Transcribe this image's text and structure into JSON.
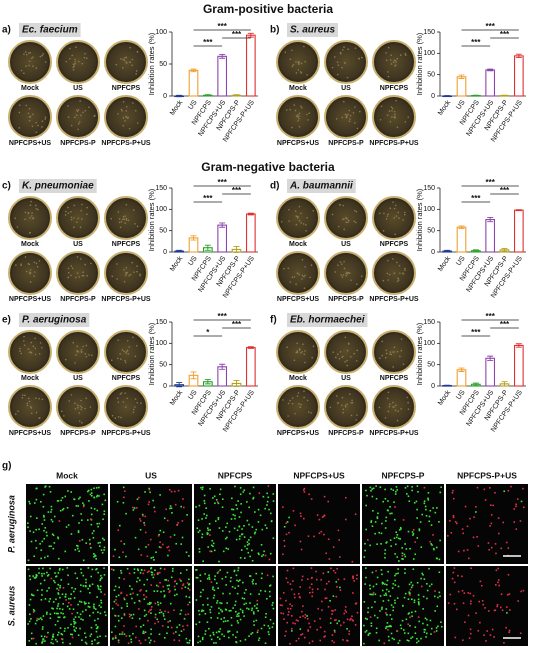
{
  "figure": {
    "sections": [
      "Gram-positive bacteria",
      "Gram-negative bacteria"
    ],
    "panel_g": {
      "label": "g)",
      "columns": [
        "Mock",
        "US",
        "NPFCPS",
        "NPFCPS+US",
        "NPFCPS-P",
        "NPFCPS-P+US"
      ],
      "rows": [
        "P. aeruginosa",
        "S. aureus"
      ]
    }
  },
  "chart_data": [
    {
      "type": "bar",
      "panel_label": "a)",
      "title": "Ec. faecium",
      "ylabel": "Inhibition rates (%)",
      "categories": [
        "Mock",
        "US",
        "NPFCPS",
        "NPFCPS+US",
        "NPFCPS-P",
        "NPFCPS-P+US"
      ],
      "values": [
        0,
        40,
        1,
        62,
        1,
        95
      ],
      "errors": [
        1,
        2,
        1,
        3,
        1,
        3
      ],
      "colors": [
        "#1f3a93",
        "#f0a030",
        "#2ca02c",
        "#8e44ad",
        "#b8a020",
        "#e03030"
      ],
      "ylim": [
        0,
        100
      ],
      "yticks": [
        0,
        50,
        100
      ],
      "brackets": [
        {
          "from": 1,
          "to": 3,
          "label": "***"
        },
        {
          "from": 3,
          "to": 5,
          "label": "***"
        },
        {
          "from": 1,
          "to": 5,
          "label": "***"
        }
      ]
    },
    {
      "type": "bar",
      "panel_label": "b)",
      "title": "S. aureus",
      "ylabel": "Inhibition rates (%)",
      "categories": [
        "Mock",
        "US",
        "NPFCPS",
        "NPFCPS+US",
        "NPFCPS-P",
        "NPFCPS-P+US"
      ],
      "values": [
        0,
        45,
        1,
        61,
        1,
        94
      ],
      "errors": [
        1,
        4,
        1,
        2,
        1,
        4
      ],
      "colors": [
        "#1f3a93",
        "#f0a030",
        "#2ca02c",
        "#8e44ad",
        "#b8a020",
        "#e03030"
      ],
      "ylim": [
        0,
        150
      ],
      "yticks": [
        0,
        50,
        100,
        150
      ],
      "brackets": [
        {
          "from": 1,
          "to": 3,
          "label": "***"
        },
        {
          "from": 3,
          "to": 5,
          "label": "***"
        },
        {
          "from": 1,
          "to": 5,
          "label": "***"
        }
      ]
    },
    {
      "type": "bar",
      "panel_label": "c)",
      "title": "K. pneumoniae",
      "ylabel": "Inhibition rates (%)",
      "categories": [
        "Mock",
        "US",
        "NPFCPS",
        "NPFCPS+US",
        "NPFCPS-P",
        "NPFCPS-P+US"
      ],
      "values": [
        2,
        33,
        10,
        63,
        6,
        89
      ],
      "errors": [
        2,
        5,
        6,
        5,
        7,
        2
      ],
      "colors": [
        "#1f3a93",
        "#f0a030",
        "#2ca02c",
        "#8e44ad",
        "#b8a020",
        "#e03030"
      ],
      "ylim": [
        0,
        150
      ],
      "yticks": [
        0,
        50,
        100,
        150
      ],
      "brackets": [
        {
          "from": 1,
          "to": 3,
          "label": "***"
        },
        {
          "from": 3,
          "to": 5,
          "label": "***"
        },
        {
          "from": 1,
          "to": 5,
          "label": "***"
        }
      ]
    },
    {
      "type": "bar",
      "panel_label": "d)",
      "title": "A. baumannii",
      "ylabel": "Inhibition rates (%)",
      "categories": [
        "Mock",
        "US",
        "NPFCPS",
        "NPFCPS+US",
        "NPFCPS-P",
        "NPFCPS-P+US"
      ],
      "values": [
        2,
        58,
        3,
        76,
        5,
        98
      ],
      "errors": [
        2,
        3,
        2,
        5,
        3,
        1
      ],
      "colors": [
        "#1f3a93",
        "#f0a030",
        "#2ca02c",
        "#8e44ad",
        "#b8a020",
        "#e03030"
      ],
      "ylim": [
        0,
        150
      ],
      "yticks": [
        0,
        50,
        100,
        150
      ],
      "brackets": [
        {
          "from": 1,
          "to": 3,
          "label": "***"
        },
        {
          "from": 3,
          "to": 5,
          "label": "***"
        },
        {
          "from": 1,
          "to": 5,
          "label": "***"
        }
      ]
    },
    {
      "type": "bar",
      "panel_label": "e)",
      "title": "P. aeruginosa",
      "ylabel": "Inhibition rates (%)",
      "categories": [
        "Mock",
        "US",
        "NPFCPS",
        "NPFCPS+US",
        "NPFCPS-P",
        "NPFCPS-P+US"
      ],
      "values": [
        3,
        25,
        10,
        45,
        6,
        90
      ],
      "errors": [
        5,
        8,
        5,
        6,
        7,
        2
      ],
      "colors": [
        "#1f3a93",
        "#f0a030",
        "#2ca02c",
        "#8e44ad",
        "#b8a020",
        "#e03030"
      ],
      "ylim": [
        0,
        150
      ],
      "yticks": [
        0,
        50,
        100,
        150
      ],
      "brackets": [
        {
          "from": 1,
          "to": 3,
          "label": "*"
        },
        {
          "from": 3,
          "to": 5,
          "label": "***"
        },
        {
          "from": 1,
          "to": 5,
          "label": "***"
        }
      ]
    },
    {
      "type": "bar",
      "panel_label": "f)",
      "title": "Eb. hormaechei",
      "ylabel": "Inhibition rates (%)",
      "categories": [
        "Mock",
        "US",
        "NPFCPS",
        "NPFCPS+US",
        "NPFCPS-P",
        "NPFCPS-P+US"
      ],
      "values": [
        1,
        38,
        4,
        65,
        5,
        95
      ],
      "errors": [
        1,
        4,
        3,
        5,
        5,
        4
      ],
      "colors": [
        "#1f3a93",
        "#f0a030",
        "#2ca02c",
        "#8e44ad",
        "#b8a020",
        "#e03030"
      ],
      "ylim": [
        0,
        150
      ],
      "yticks": [
        0,
        50,
        100,
        150
      ],
      "brackets": [
        {
          "from": 1,
          "to": 3,
          "label": "***"
        },
        {
          "from": 3,
          "to": 5,
          "label": "***"
        },
        {
          "from": 1,
          "to": 5,
          "label": "***"
        }
      ]
    }
  ]
}
